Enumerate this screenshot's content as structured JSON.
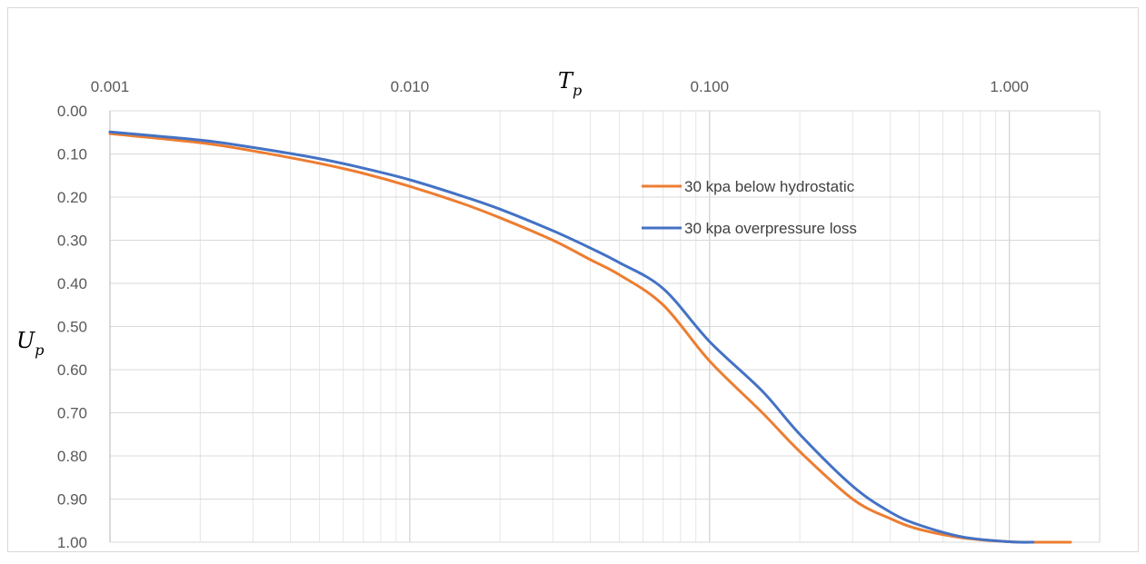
{
  "chart_data": {
    "type": "line",
    "title": "",
    "xlabel": {
      "main": "T",
      "sub": "p"
    },
    "ylabel": {
      "main": "U",
      "sub": "p"
    },
    "x_scale": "log",
    "xlim": [
      0.001,
      2.0
    ],
    "ylim": [
      0.0,
      1.0
    ],
    "y_inverted": true,
    "x_axis_position": "top",
    "grid": true,
    "x_ticks": [
      {
        "value": 0.001,
        "label": "0.001"
      },
      {
        "value": 0.01,
        "label": "0.010"
      },
      {
        "value": 0.1,
        "label": "0.100"
      },
      {
        "value": 1.0,
        "label": "1.000"
      }
    ],
    "y_ticks": [
      {
        "value": 0.0,
        "label": "0.00"
      },
      {
        "value": 0.1,
        "label": "0.10"
      },
      {
        "value": 0.2,
        "label": "0.20"
      },
      {
        "value": 0.3,
        "label": "0.30"
      },
      {
        "value": 0.4,
        "label": "0.40"
      },
      {
        "value": 0.5,
        "label": "0.50"
      },
      {
        "value": 0.6,
        "label": "0.60"
      },
      {
        "value": 0.7,
        "label": "0.70"
      },
      {
        "value": 0.8,
        "label": "0.80"
      },
      {
        "value": 0.9,
        "label": "0.90"
      },
      {
        "value": 1.0,
        "label": "1.00"
      }
    ],
    "legend_position": "upper-right-inside",
    "series": [
      {
        "name": "30 kpa below hydrostatic",
        "color": "#ED7D31",
        "points": [
          [
            0.001,
            0.053
          ],
          [
            0.002,
            0.074
          ],
          [
            0.003,
            0.093
          ],
          [
            0.005,
            0.122
          ],
          [
            0.007,
            0.145
          ],
          [
            0.01,
            0.175
          ],
          [
            0.015,
            0.215
          ],
          [
            0.02,
            0.248
          ],
          [
            0.03,
            0.3
          ],
          [
            0.04,
            0.345
          ],
          [
            0.05,
            0.38
          ],
          [
            0.07,
            0.45
          ],
          [
            0.1,
            0.58
          ],
          [
            0.15,
            0.7
          ],
          [
            0.2,
            0.79
          ],
          [
            0.3,
            0.9
          ],
          [
            0.4,
            0.945
          ],
          [
            0.5,
            0.97
          ],
          [
            0.7,
            0.99
          ],
          [
            1.0,
            0.999
          ],
          [
            1.2,
            1.0
          ],
          [
            1.6,
            1.0
          ]
        ]
      },
      {
        "name": "30 kpa overpressure loss",
        "color": "#4472C4",
        "points": [
          [
            0.001,
            0.049
          ],
          [
            0.002,
            0.068
          ],
          [
            0.003,
            0.085
          ],
          [
            0.005,
            0.111
          ],
          [
            0.007,
            0.133
          ],
          [
            0.01,
            0.16
          ],
          [
            0.015,
            0.198
          ],
          [
            0.02,
            0.228
          ],
          [
            0.03,
            0.278
          ],
          [
            0.04,
            0.318
          ],
          [
            0.05,
            0.352
          ],
          [
            0.07,
            0.412
          ],
          [
            0.1,
            0.535
          ],
          [
            0.15,
            0.65
          ],
          [
            0.2,
            0.75
          ],
          [
            0.3,
            0.87
          ],
          [
            0.4,
            0.93
          ],
          [
            0.5,
            0.96
          ],
          [
            0.7,
            0.988
          ],
          [
            1.0,
            0.999
          ],
          [
            1.2,
            1.0
          ]
        ]
      }
    ]
  }
}
